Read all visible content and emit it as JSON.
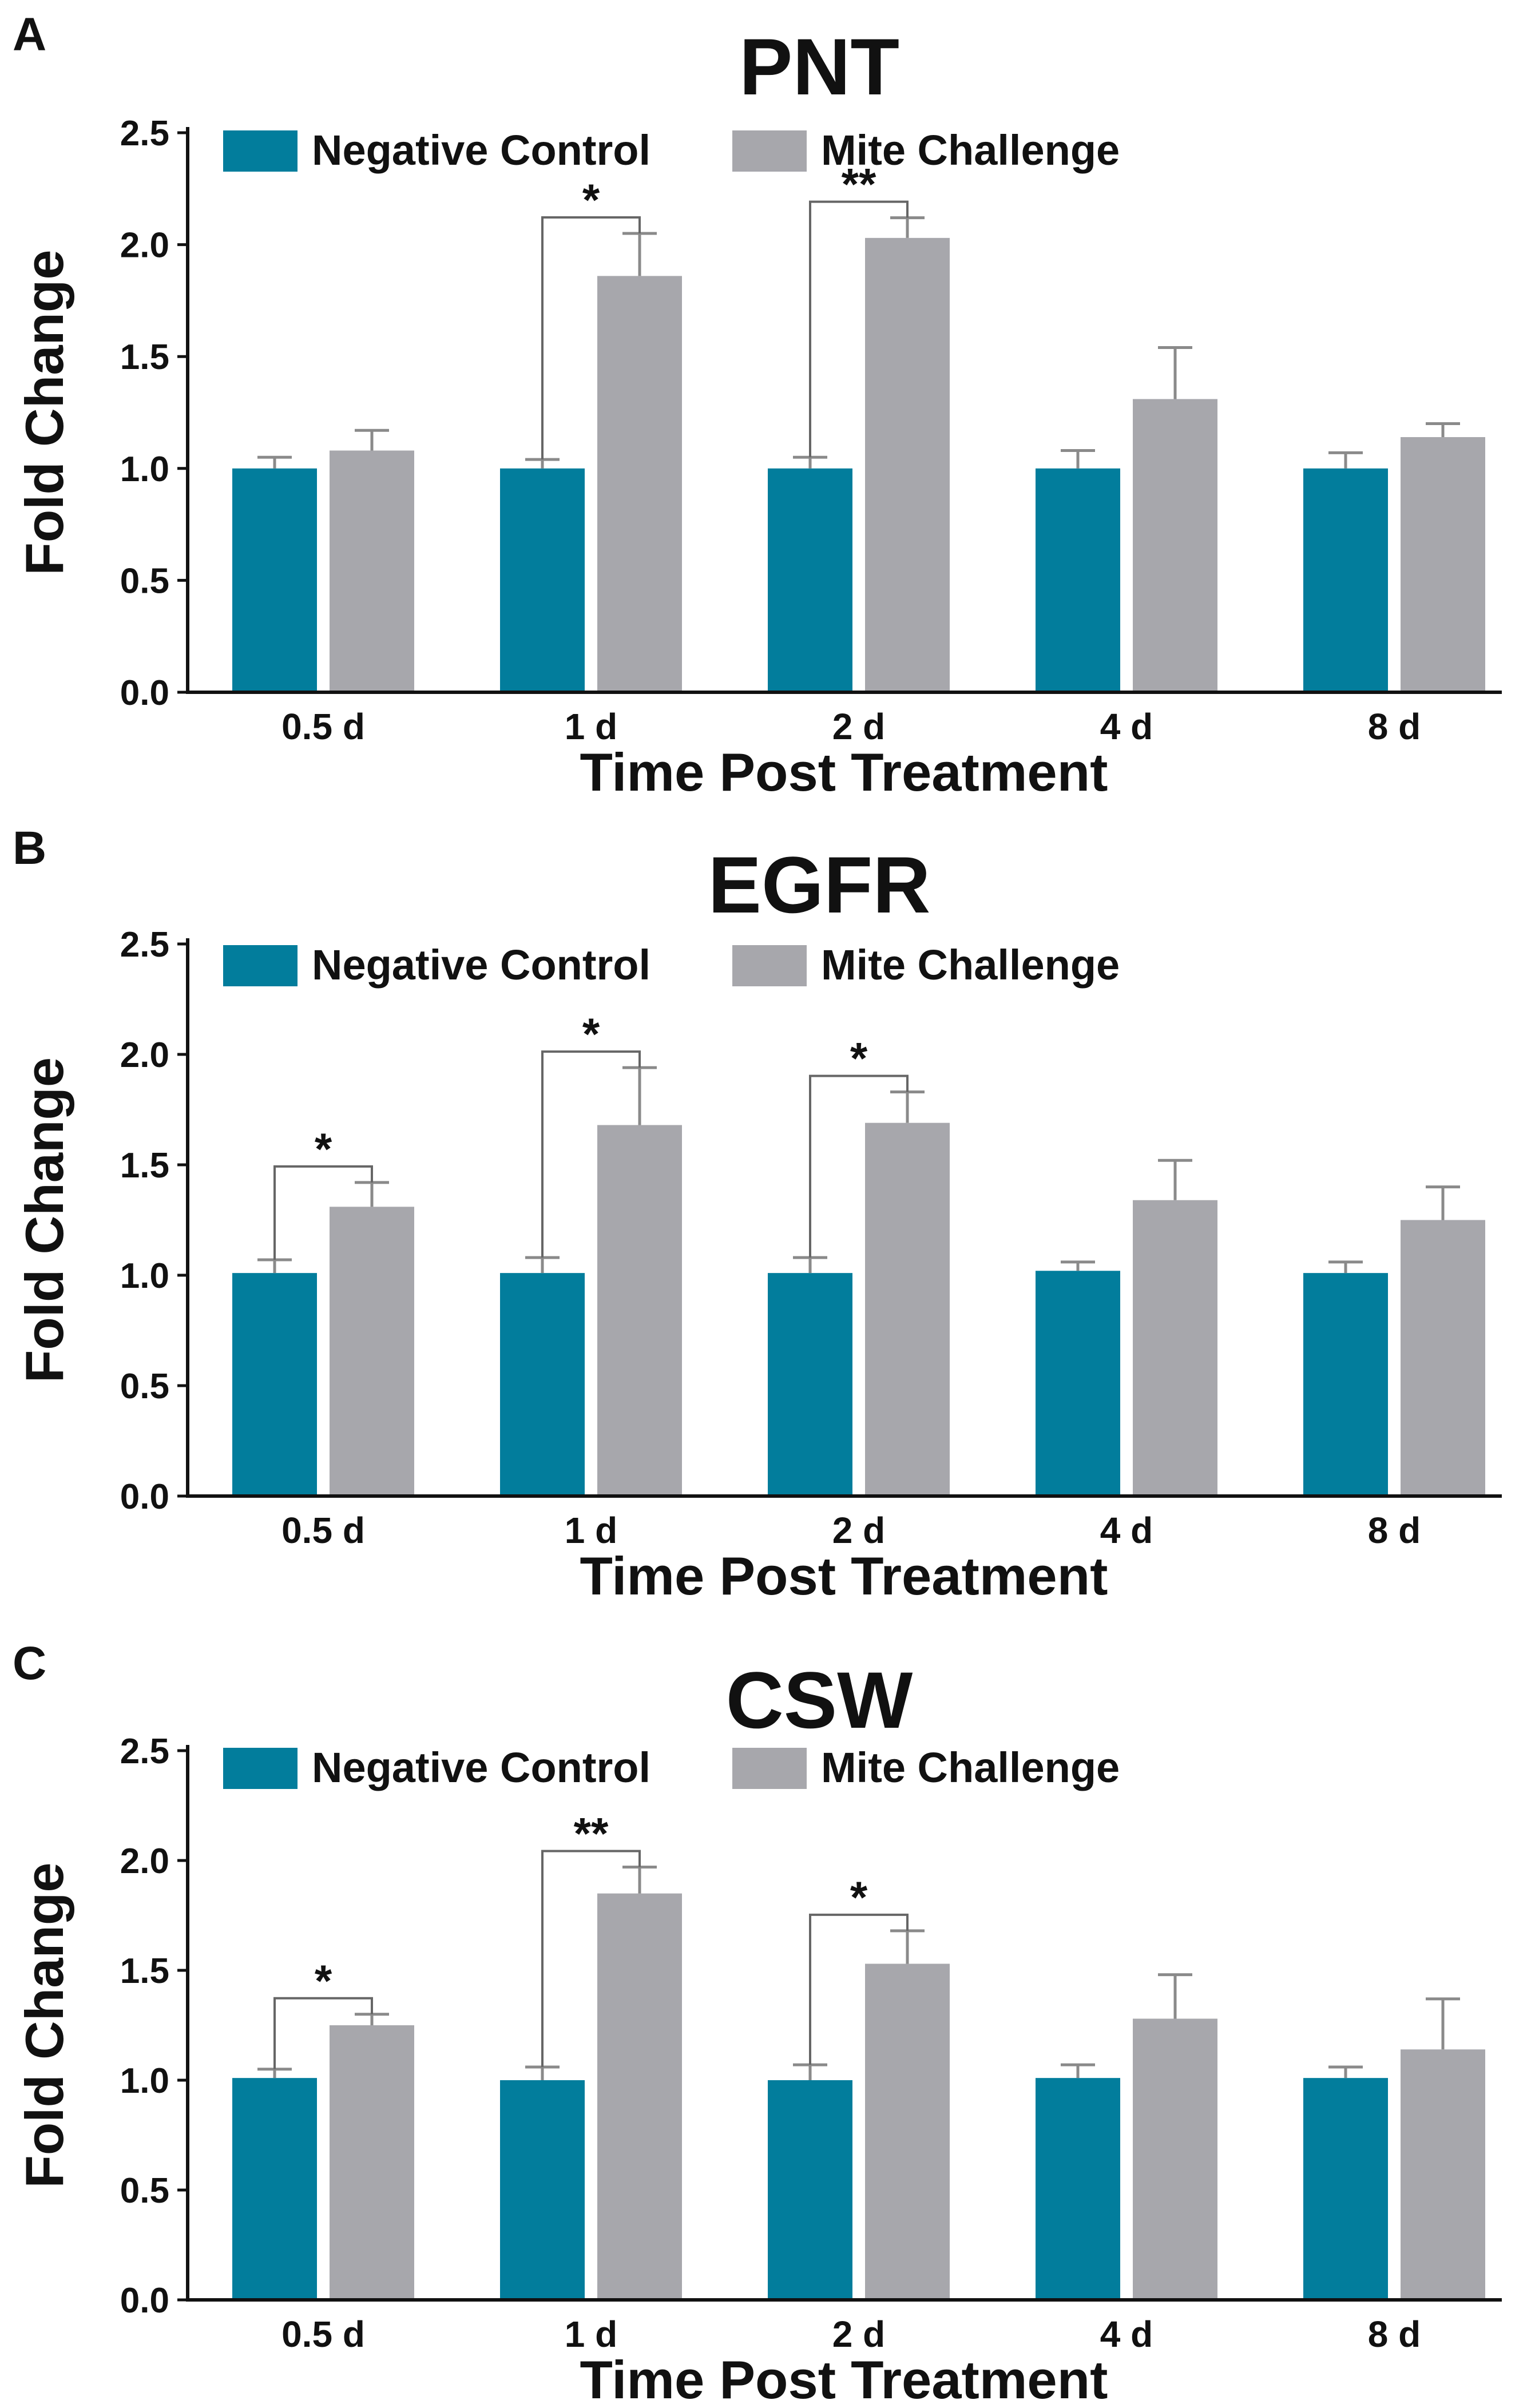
{
  "colors": {
    "negative_control": "#027d9c",
    "mite_challenge": "#a7a7ac",
    "axis": "#111111",
    "error_bar": "#8a8a8a",
    "bracket": "#666666"
  },
  "chart_data": [
    {
      "panel": "A",
      "type": "bar",
      "title": "PNT",
      "xlabel": "Time Post Treatment",
      "ylabel": "Fold Change",
      "ylim": [
        0,
        2.5
      ],
      "yticks": [
        "0.0",
        "0.5",
        "1.0",
        "1.5",
        "2.0",
        "2.5"
      ],
      "categories": [
        "0.5 d",
        "1 d",
        "2 d",
        "4 d",
        "8 d"
      ],
      "legend_position": "top-left",
      "series": [
        {
          "name": "Negative Control",
          "values": [
            1.0,
            1.0,
            1.0,
            1.0,
            1.0
          ],
          "errors": [
            0.05,
            0.04,
            0.05,
            0.08,
            0.07
          ]
        },
        {
          "name": "Mite Challenge",
          "values": [
            1.08,
            1.86,
            2.03,
            1.31,
            1.14
          ],
          "errors": [
            0.09,
            0.19,
            0.09,
            0.23,
            0.06
          ]
        }
      ],
      "significance": [
        {
          "category": "1 d",
          "label": "*"
        },
        {
          "category": "2 d",
          "label": "**"
        }
      ]
    },
    {
      "panel": "B",
      "type": "bar",
      "title": "EGFR",
      "xlabel": "Time Post Treatment",
      "ylabel": "Fold Change",
      "ylim": [
        0,
        2.5
      ],
      "yticks": [
        "0.0",
        "0.5",
        "1.0",
        "1.5",
        "2.0",
        "2.5"
      ],
      "categories": [
        "0.5 d",
        "1 d",
        "2 d",
        "4 d",
        "8 d"
      ],
      "legend_position": "top-left",
      "series": [
        {
          "name": "Negative Control",
          "values": [
            1.01,
            1.01,
            1.01,
            1.02,
            1.01
          ],
          "errors": [
            0.06,
            0.07,
            0.07,
            0.04,
            0.05
          ]
        },
        {
          "name": "Mite Challenge",
          "values": [
            1.31,
            1.68,
            1.69,
            1.34,
            1.25
          ],
          "errors": [
            0.11,
            0.26,
            0.14,
            0.18,
            0.15
          ]
        }
      ],
      "significance": [
        {
          "category": "0.5 d",
          "label": "*"
        },
        {
          "category": "1 d",
          "label": "*"
        },
        {
          "category": "2 d",
          "label": "*"
        }
      ]
    },
    {
      "panel": "C",
      "type": "bar",
      "title": "CSW",
      "xlabel": "Time Post Treatment",
      "ylabel": "Fold Change",
      "ylim": [
        0,
        2.5
      ],
      "yticks": [
        "0.0",
        "0.5",
        "1.0",
        "1.5",
        "2.0",
        "2.5"
      ],
      "categories": [
        "0.5 d",
        "1 d",
        "2 d",
        "4 d",
        "8 d"
      ],
      "legend_position": "top-left",
      "series": [
        {
          "name": "Negative Control",
          "values": [
            1.01,
            1.0,
            1.0,
            1.01,
            1.01
          ],
          "errors": [
            0.04,
            0.06,
            0.07,
            0.06,
            0.05
          ]
        },
        {
          "name": "Mite Challenge",
          "values": [
            1.25,
            1.85,
            1.53,
            1.28,
            1.14
          ],
          "errors": [
            0.05,
            0.12,
            0.15,
            0.2,
            0.23
          ]
        }
      ],
      "significance": [
        {
          "category": "0.5 d",
          "label": "*"
        },
        {
          "category": "1 d",
          "label": "**"
        },
        {
          "category": "2 d",
          "label": "*"
        }
      ]
    }
  ]
}
